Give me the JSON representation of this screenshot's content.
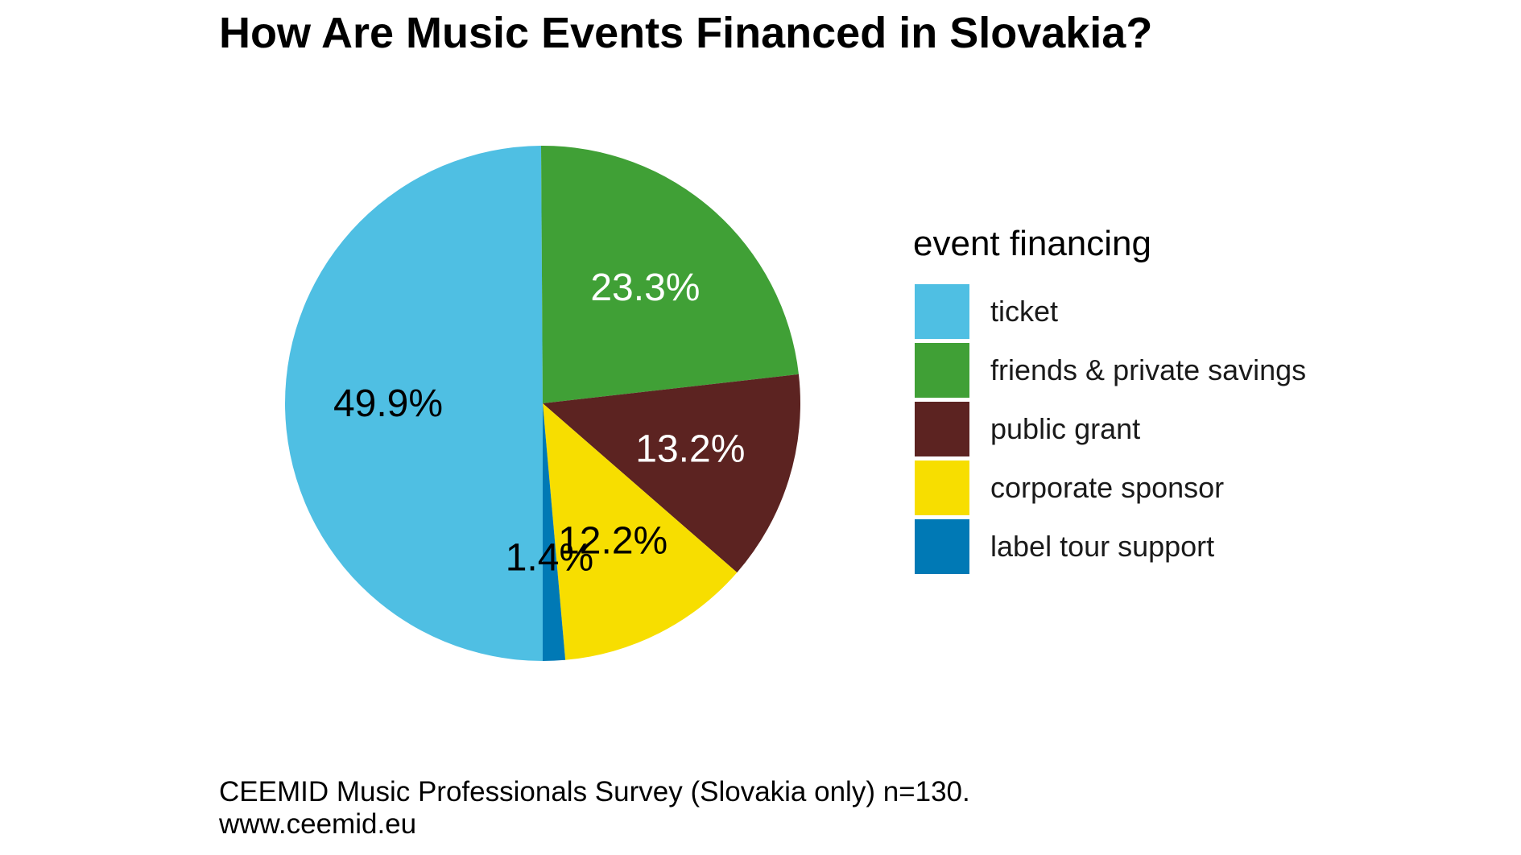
{
  "chart_data": {
    "type": "pie",
    "title": "How Are Music Events Financed in Slovakia?",
    "legend_title": "event financing",
    "legend_position": "right",
    "slices": [
      {
        "name": "ticket",
        "value": 49.9,
        "label": "49.9%",
        "color": "#4FBFE3",
        "label_color": "#000000"
      },
      {
        "name": "friends & private savings",
        "value": 23.3,
        "label": "23.3%",
        "color": "#40A036",
        "label_color": "#ffffff"
      },
      {
        "name": "public grant",
        "value": 13.2,
        "label": "13.2%",
        "color": "#5C2321",
        "label_color": "#ffffff"
      },
      {
        "name": "corporate sponsor",
        "value": 12.2,
        "label": "12.2%",
        "color": "#F7DE00",
        "label_color": "#000000"
      },
      {
        "name": "label tour support",
        "value": 1.4,
        "label": "1.4%",
        "color": "#0079B5",
        "label_color": "#000000"
      }
    ],
    "caption_lines": [
      "CEEMID Music Professionals Survey (Slovakia only) n=130.",
      "www.ceemid.eu"
    ]
  }
}
